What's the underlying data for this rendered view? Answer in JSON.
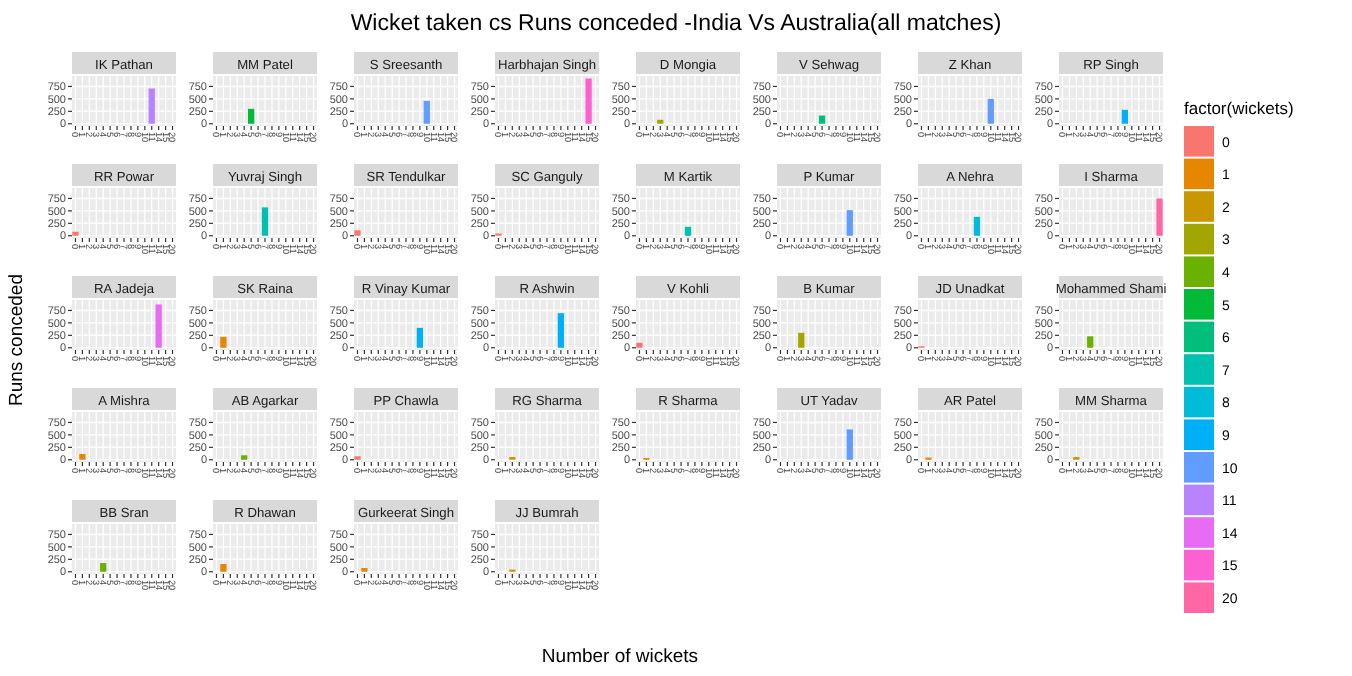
{
  "chart_data": [
    {
      "type": "other",
      "title": "Wicket taken cs Runs conceded -India Vs Australia(all matches)",
      "xlabel": "Number of wickets",
      "ylabel": "Runs conceded",
      "legend_title": "factor(wickets)"
    },
    {
      "type": "bar",
      "title": "IK Pathan",
      "categories": [
        "0",
        "1",
        "2",
        "3",
        "4",
        "5",
        "6",
        "7",
        "8",
        "9",
        "10",
        "11",
        "14",
        "15",
        "20"
      ],
      "series": [
        {
          "name": "11",
          "color": "#b983ff",
          "values": [
            null,
            null,
            null,
            null,
            null,
            null,
            null,
            null,
            null,
            null,
            null,
            710,
            null,
            null,
            null
          ]
        }
      ],
      "ylim": [
        -45,
        960
      ],
      "yticks": [
        0,
        250,
        500,
        750
      ],
      "grid": true,
      "legend": "right"
    },
    {
      "type": "bar",
      "title": "MM Patel",
      "categories": [
        "0",
        "1",
        "2",
        "3",
        "4",
        "5",
        "6",
        "7",
        "8",
        "9",
        "10",
        "11",
        "14",
        "15",
        "20"
      ],
      "series": [
        {
          "name": "5",
          "color": "#00ba38",
          "values": [
            null,
            null,
            null,
            null,
            null,
            300,
            null,
            null,
            null,
            null,
            null,
            null,
            null,
            null,
            null
          ]
        }
      ],
      "ylim": [
        -45,
        960
      ],
      "yticks": [
        0,
        250,
        500,
        750
      ],
      "grid": true
    },
    {
      "type": "bar",
      "title": "S Sreesanth",
      "categories": [
        "0",
        "1",
        "2",
        "3",
        "4",
        "5",
        "6",
        "7",
        "8",
        "9",
        "10",
        "11",
        "14",
        "15",
        "20"
      ],
      "series": [
        {
          "name": "10",
          "color": "#619cff",
          "values": [
            null,
            null,
            null,
            null,
            null,
            null,
            null,
            null,
            null,
            null,
            460,
            null,
            null,
            null,
            null
          ]
        }
      ],
      "ylim": [
        -45,
        960
      ],
      "yticks": [
        0,
        250,
        500,
        750
      ],
      "grid": true
    },
    {
      "type": "bar",
      "title": "Harbhajan Singh",
      "categories": [
        "0",
        "1",
        "2",
        "3",
        "4",
        "5",
        "6",
        "7",
        "8",
        "9",
        "10",
        "11",
        "14",
        "15",
        "20"
      ],
      "series": [
        {
          "name": "15",
          "color": "#fd61d1",
          "values": [
            null,
            null,
            null,
            null,
            null,
            null,
            null,
            null,
            null,
            null,
            null,
            null,
            null,
            910,
            null
          ]
        }
      ],
      "ylim": [
        -45,
        960
      ],
      "yticks": [
        0,
        250,
        500,
        750
      ],
      "grid": true
    },
    {
      "type": "bar",
      "title": "D Mongia",
      "categories": [
        "0",
        "1",
        "2",
        "3",
        "4",
        "5",
        "6",
        "7",
        "8",
        "9",
        "10",
        "11",
        "14",
        "15",
        "20"
      ],
      "series": [
        {
          "name": "3",
          "color": "#a3a500",
          "values": [
            null,
            null,
            null,
            80,
            null,
            null,
            null,
            null,
            null,
            null,
            null,
            null,
            null,
            null,
            null
          ]
        }
      ],
      "ylim": [
        -45,
        960
      ],
      "yticks": [
        0,
        250,
        500,
        750
      ],
      "grid": true
    },
    {
      "type": "bar",
      "title": "V Sehwag",
      "categories": [
        "0",
        "1",
        "2",
        "3",
        "4",
        "5",
        "6",
        "7",
        "8",
        "9",
        "10",
        "11",
        "14",
        "15",
        "20"
      ],
      "series": [
        {
          "name": "6",
          "color": "#00bf7d",
          "values": [
            null,
            null,
            null,
            null,
            null,
            null,
            165,
            null,
            null,
            null,
            null,
            null,
            null,
            null,
            null
          ]
        }
      ],
      "ylim": [
        -45,
        960
      ],
      "yticks": [
        0,
        250,
        500,
        750
      ],
      "grid": true
    },
    {
      "type": "bar",
      "title": "Z Khan",
      "categories": [
        "0",
        "1",
        "2",
        "3",
        "4",
        "5",
        "6",
        "7",
        "8",
        "9",
        "10",
        "11",
        "14",
        "15",
        "20"
      ],
      "series": [
        {
          "name": "10",
          "color": "#619cff",
          "values": [
            null,
            null,
            null,
            null,
            null,
            null,
            null,
            null,
            null,
            null,
            500,
            null,
            null,
            null,
            null
          ]
        }
      ],
      "ylim": [
        -45,
        960
      ],
      "yticks": [
        0,
        250,
        500,
        750
      ],
      "grid": true
    },
    {
      "type": "bar",
      "title": "RP Singh",
      "categories": [
        "0",
        "1",
        "2",
        "3",
        "4",
        "5",
        "6",
        "7",
        "8",
        "9",
        "10",
        "11",
        "14",
        "15",
        "20"
      ],
      "series": [
        {
          "name": "9",
          "color": "#00b0f6",
          "values": [
            null,
            null,
            null,
            null,
            null,
            null,
            null,
            null,
            null,
            280,
            null,
            null,
            null,
            null,
            null
          ]
        }
      ],
      "ylim": [
        -45,
        960
      ],
      "yticks": [
        0,
        250,
        500,
        750
      ],
      "grid": true
    },
    {
      "type": "bar",
      "title": "RR Powar",
      "categories": [
        "0",
        "1",
        "2",
        "3",
        "4",
        "5",
        "6",
        "7",
        "8",
        "9",
        "10",
        "11",
        "14",
        "15",
        "20"
      ],
      "series": [
        {
          "name": "0",
          "color": "#f8766d",
          "values": [
            80,
            null,
            null,
            null,
            null,
            null,
            null,
            null,
            null,
            null,
            null,
            null,
            null,
            null,
            null
          ]
        }
      ],
      "ylim": [
        -45,
        960
      ],
      "yticks": [
        0,
        250,
        500,
        750
      ],
      "grid": true
    },
    {
      "type": "bar",
      "title": "Yuvraj Singh",
      "categories": [
        "0",
        "1",
        "2",
        "3",
        "4",
        "5",
        "6",
        "7",
        "8",
        "9",
        "10",
        "11",
        "14",
        "15",
        "20"
      ],
      "series": [
        {
          "name": "7",
          "color": "#00c0af",
          "values": [
            null,
            null,
            null,
            null,
            null,
            null,
            null,
            570,
            null,
            null,
            null,
            null,
            null,
            null,
            null
          ]
        }
      ],
      "ylim": [
        -45,
        960
      ],
      "yticks": [
        0,
        250,
        500,
        750
      ],
      "grid": true
    },
    {
      "type": "bar",
      "title": "SR Tendulkar",
      "categories": [
        "0",
        "1",
        "2",
        "3",
        "4",
        "5",
        "6",
        "7",
        "8",
        "9",
        "10",
        "11",
        "14",
        "15",
        "20"
      ],
      "series": [
        {
          "name": "0",
          "color": "#f8766d",
          "values": [
            110,
            null,
            null,
            null,
            null,
            null,
            null,
            null,
            null,
            null,
            null,
            null,
            null,
            null,
            null
          ]
        }
      ],
      "ylim": [
        -45,
        960
      ],
      "yticks": [
        0,
        250,
        500,
        750
      ],
      "grid": true
    },
    {
      "type": "bar",
      "title": "SC Ganguly",
      "categories": [
        "0",
        "1",
        "2",
        "3",
        "4",
        "5",
        "6",
        "7",
        "8",
        "9",
        "10",
        "11",
        "14",
        "15",
        "20"
      ],
      "series": [
        {
          "name": "0",
          "color": "#f8766d",
          "values": [
            45,
            null,
            null,
            null,
            null,
            null,
            null,
            null,
            null,
            null,
            null,
            null,
            null,
            null,
            null
          ]
        }
      ],
      "ylim": [
        -45,
        960
      ],
      "yticks": [
        0,
        250,
        500,
        750
      ],
      "grid": true
    },
    {
      "type": "bar",
      "title": "M Kartik",
      "categories": [
        "0",
        "1",
        "2",
        "3",
        "4",
        "5",
        "6",
        "7",
        "8",
        "9",
        "10",
        "11",
        "14",
        "15",
        "20"
      ],
      "series": [
        {
          "name": "7",
          "color": "#00c0af",
          "values": [
            null,
            null,
            null,
            null,
            null,
            null,
            null,
            180,
            null,
            null,
            null,
            null,
            null,
            null,
            null
          ]
        }
      ],
      "ylim": [
        -45,
        960
      ],
      "yticks": [
        0,
        250,
        500,
        750
      ],
      "grid": true
    },
    {
      "type": "bar",
      "title": "P Kumar",
      "categories": [
        "0",
        "1",
        "2",
        "3",
        "4",
        "5",
        "6",
        "7",
        "8",
        "9",
        "10",
        "11",
        "14",
        "15",
        "20"
      ],
      "series": [
        {
          "name": "10",
          "color": "#619cff",
          "values": [
            null,
            null,
            null,
            null,
            null,
            null,
            null,
            null,
            null,
            null,
            515,
            null,
            null,
            null,
            null
          ]
        }
      ],
      "ylim": [
        -45,
        960
      ],
      "yticks": [
        0,
        250,
        500,
        750
      ],
      "grid": true
    },
    {
      "type": "bar",
      "title": "A Nehra",
      "categories": [
        "0",
        "1",
        "2",
        "3",
        "4",
        "5",
        "6",
        "7",
        "8",
        "9",
        "10",
        "11",
        "14",
        "15",
        "20"
      ],
      "series": [
        {
          "name": "8",
          "color": "#00bcd8",
          "values": [
            null,
            null,
            null,
            null,
            null,
            null,
            null,
            null,
            380,
            null,
            null,
            null,
            null,
            null,
            null
          ]
        }
      ],
      "ylim": [
        -45,
        960
      ],
      "yticks": [
        0,
        250,
        500,
        750
      ],
      "grid": true
    },
    {
      "type": "bar",
      "title": "I Sharma",
      "categories": [
        "0",
        "1",
        "2",
        "3",
        "4",
        "5",
        "6",
        "7",
        "8",
        "9",
        "10",
        "11",
        "14",
        "15",
        "20"
      ],
      "series": [
        {
          "name": "20",
          "color": "#ff67a4",
          "values": [
            null,
            null,
            null,
            null,
            null,
            null,
            null,
            null,
            null,
            null,
            null,
            null,
            null,
            null,
            750
          ]
        }
      ],
      "ylim": [
        -45,
        960
      ],
      "yticks": [
        0,
        250,
        500,
        750
      ],
      "grid": true
    },
    {
      "type": "bar",
      "title": "RA Jadeja",
      "categories": [
        "0",
        "1",
        "2",
        "3",
        "4",
        "5",
        "6",
        "7",
        "8",
        "9",
        "10",
        "11",
        "14",
        "15",
        "20"
      ],
      "series": [
        {
          "name": "14",
          "color": "#e76bf3",
          "values": [
            null,
            null,
            null,
            null,
            null,
            null,
            null,
            null,
            null,
            null,
            null,
            null,
            870,
            null,
            null
          ]
        }
      ],
      "ylim": [
        -45,
        960
      ],
      "yticks": [
        0,
        250,
        500,
        750
      ],
      "grid": true
    },
    {
      "type": "bar",
      "title": "SK Raina",
      "categories": [
        "0",
        "1",
        "2",
        "3",
        "4",
        "5",
        "6",
        "7",
        "8",
        "9",
        "10",
        "11",
        "14",
        "15",
        "20"
      ],
      "series": [
        {
          "name": "1",
          "color": "#e58700",
          "values": [
            null,
            220,
            null,
            null,
            null,
            null,
            null,
            null,
            null,
            null,
            null,
            null,
            null,
            null,
            null
          ]
        }
      ],
      "ylim": [
        -45,
        960
      ],
      "yticks": [
        0,
        250,
        500,
        750
      ],
      "grid": true
    },
    {
      "type": "bar",
      "title": "R Vinay Kumar",
      "categories": [
        "0",
        "1",
        "2",
        "3",
        "4",
        "5",
        "6",
        "7",
        "8",
        "9",
        "10",
        "11",
        "14",
        "15",
        "20"
      ],
      "series": [
        {
          "name": "9",
          "color": "#00b0f6",
          "values": [
            null,
            null,
            null,
            null,
            null,
            null,
            null,
            null,
            null,
            400,
            null,
            null,
            null,
            null,
            null
          ]
        }
      ],
      "ylim": [
        -45,
        960
      ],
      "yticks": [
        0,
        250,
        500,
        750
      ],
      "grid": true
    },
    {
      "type": "bar",
      "title": "R Ashwin",
      "categories": [
        "0",
        "1",
        "2",
        "3",
        "4",
        "5",
        "6",
        "7",
        "8",
        "9",
        "10",
        "11",
        "14",
        "15",
        "20"
      ],
      "series": [
        {
          "name": "9",
          "color": "#00b0f6",
          "values": [
            null,
            null,
            null,
            null,
            null,
            null,
            null,
            null,
            null,
            695,
            null,
            null,
            null,
            null,
            null
          ]
        }
      ],
      "ylim": [
        -45,
        960
      ],
      "yticks": [
        0,
        250,
        500,
        750
      ],
      "grid": true
    },
    {
      "type": "bar",
      "title": "V Kohli",
      "categories": [
        "0",
        "1",
        "2",
        "3",
        "4",
        "5",
        "6",
        "7",
        "8",
        "9",
        "10",
        "11",
        "14",
        "15",
        "20"
      ],
      "series": [
        {
          "name": "0",
          "color": "#f8766d",
          "values": [
            100,
            null,
            null,
            null,
            null,
            null,
            null,
            null,
            null,
            null,
            null,
            null,
            null,
            null,
            null
          ]
        }
      ],
      "ylim": [
        -45,
        960
      ],
      "yticks": [
        0,
        250,
        500,
        750
      ],
      "grid": true
    },
    {
      "type": "bar",
      "title": "B Kumar",
      "categories": [
        "0",
        "1",
        "2",
        "3",
        "4",
        "5",
        "6",
        "7",
        "8",
        "9",
        "10",
        "11",
        "14",
        "15",
        "20"
      ],
      "series": [
        {
          "name": "3",
          "color": "#a3a500",
          "values": [
            null,
            null,
            null,
            300,
            null,
            null,
            null,
            null,
            null,
            null,
            null,
            null,
            null,
            null,
            null
          ]
        }
      ],
      "ylim": [
        -45,
        960
      ],
      "yticks": [
        0,
        250,
        500,
        750
      ],
      "grid": true
    },
    {
      "type": "bar",
      "title": "JD Unadkat",
      "categories": [
        "0",
        "1",
        "2",
        "3",
        "4",
        "5",
        "6",
        "7",
        "8",
        "9",
        "10",
        "11",
        "14",
        "15",
        "20"
      ],
      "series": [
        {
          "name": "0",
          "color": "#f8766d",
          "values": [
            30,
            null,
            null,
            null,
            null,
            null,
            null,
            null,
            null,
            null,
            null,
            null,
            null,
            null,
            null
          ]
        }
      ],
      "ylim": [
        -45,
        960
      ],
      "yticks": [
        0,
        250,
        500,
        750
      ],
      "grid": true
    },
    {
      "type": "bar",
      "title": "Mohammed Shami",
      "categories": [
        "0",
        "1",
        "2",
        "3",
        "4",
        "5",
        "6",
        "7",
        "8",
        "9",
        "10",
        "11",
        "14",
        "15",
        "20"
      ],
      "series": [
        {
          "name": "4",
          "color": "#6bb100",
          "values": [
            null,
            null,
            null,
            null,
            230,
            null,
            null,
            null,
            null,
            null,
            null,
            null,
            null,
            null,
            null
          ]
        }
      ],
      "ylim": [
        -45,
        960
      ],
      "yticks": [
        0,
        250,
        500,
        750
      ],
      "grid": true
    },
    {
      "type": "bar",
      "title": "A Mishra",
      "categories": [
        "0",
        "1",
        "2",
        "3",
        "4",
        "5",
        "6",
        "7",
        "8",
        "9",
        "10",
        "11",
        "14",
        "15",
        "20"
      ],
      "series": [
        {
          "name": "1",
          "color": "#e58700",
          "values": [
            null,
            115,
            null,
            null,
            null,
            null,
            null,
            null,
            null,
            null,
            null,
            null,
            null,
            null,
            null
          ]
        }
      ],
      "ylim": [
        -45,
        960
      ],
      "yticks": [
        0,
        250,
        500,
        750
      ],
      "grid": true
    },
    {
      "type": "bar",
      "title": "AB Agarkar",
      "categories": [
        "0",
        "1",
        "2",
        "3",
        "4",
        "5",
        "6",
        "7",
        "8",
        "9",
        "10",
        "11",
        "14",
        "15",
        "20"
      ],
      "series": [
        {
          "name": "4",
          "color": "#6bb100",
          "values": [
            null,
            null,
            null,
            null,
            90,
            null,
            null,
            null,
            null,
            null,
            null,
            null,
            null,
            null,
            null
          ]
        }
      ],
      "ylim": [
        -45,
        960
      ],
      "yticks": [
        0,
        250,
        500,
        750
      ],
      "grid": true
    },
    {
      "type": "bar",
      "title": "PP Chawla",
      "categories": [
        "0",
        "1",
        "2",
        "3",
        "4",
        "5",
        "6",
        "7",
        "8",
        "9",
        "10",
        "11",
        "14",
        "15",
        "20"
      ],
      "series": [
        {
          "name": "0",
          "color": "#f8766d",
          "values": [
            70,
            null,
            null,
            null,
            null,
            null,
            null,
            null,
            null,
            null,
            null,
            null,
            null,
            null,
            null
          ]
        }
      ],
      "ylim": [
        -45,
        960
      ],
      "yticks": [
        0,
        250,
        500,
        750
      ],
      "grid": true
    },
    {
      "type": "bar",
      "title": "RG Sharma",
      "categories": [
        "0",
        "1",
        "2",
        "3",
        "4",
        "5",
        "6",
        "7",
        "8",
        "9",
        "10",
        "11",
        "14",
        "15",
        "20"
      ],
      "series": [
        {
          "name": "2",
          "color": "#c99800",
          "values": [
            null,
            null,
            55,
            null,
            null,
            null,
            null,
            null,
            null,
            null,
            null,
            null,
            null,
            null,
            null
          ]
        }
      ],
      "ylim": [
        -45,
        960
      ],
      "yticks": [
        0,
        250,
        500,
        750
      ],
      "grid": true
    },
    {
      "type": "bar",
      "title": "R Sharma",
      "categories": [
        "0",
        "1",
        "2",
        "3",
        "4",
        "5",
        "6",
        "7",
        "8",
        "9",
        "10",
        "11",
        "14",
        "15",
        "20"
      ],
      "series": [
        {
          "name": "1",
          "color": "#e58700",
          "values": [
            null,
            35,
            null,
            null,
            null,
            null,
            null,
            null,
            null,
            null,
            null,
            null,
            null,
            null,
            null
          ]
        }
      ],
      "ylim": [
        -45,
        960
      ],
      "yticks": [
        0,
        250,
        500,
        750
      ],
      "grid": true
    },
    {
      "type": "bar",
      "title": "UT Yadav",
      "categories": [
        "0",
        "1",
        "2",
        "3",
        "4",
        "5",
        "6",
        "7",
        "8",
        "9",
        "10",
        "11",
        "14",
        "15",
        "20"
      ],
      "series": [
        {
          "name": "10",
          "color": "#619cff",
          "values": [
            null,
            null,
            null,
            null,
            null,
            null,
            null,
            null,
            null,
            null,
            610,
            null,
            null,
            null,
            null
          ]
        }
      ],
      "ylim": [
        -45,
        960
      ],
      "yticks": [
        0,
        250,
        500,
        750
      ],
      "grid": true
    },
    {
      "type": "bar",
      "title": "AR Patel",
      "categories": [
        "0",
        "1",
        "2",
        "3",
        "4",
        "5",
        "6",
        "7",
        "8",
        "9",
        "10",
        "11",
        "14",
        "15",
        "20"
      ],
      "series": [
        {
          "name": "1",
          "color": "#e58700",
          "values": [
            null,
            45,
            null,
            null,
            null,
            null,
            null,
            null,
            null,
            null,
            null,
            null,
            null,
            null,
            null
          ]
        }
      ],
      "ylim": [
        -45,
        960
      ],
      "yticks": [
        0,
        250,
        500,
        750
      ],
      "grid": true
    },
    {
      "type": "bar",
      "title": "MM Sharma",
      "categories": [
        "0",
        "1",
        "2",
        "3",
        "4",
        "5",
        "6",
        "7",
        "8",
        "9",
        "10",
        "11",
        "14",
        "15",
        "20"
      ],
      "series": [
        {
          "name": "2",
          "color": "#c99800",
          "values": [
            null,
            null,
            55,
            null,
            null,
            null,
            null,
            null,
            null,
            null,
            null,
            null,
            null,
            null,
            null
          ]
        }
      ],
      "ylim": [
        -45,
        960
      ],
      "yticks": [
        0,
        250,
        500,
        750
      ],
      "grid": true
    },
    {
      "type": "bar",
      "title": "BB Sran",
      "categories": [
        "0",
        "1",
        "2",
        "3",
        "4",
        "5",
        "6",
        "7",
        "8",
        "9",
        "10",
        "11",
        "14",
        "15",
        "20"
      ],
      "series": [
        {
          "name": "4",
          "color": "#6bb100",
          "values": [
            null,
            null,
            null,
            null,
            175,
            null,
            null,
            null,
            null,
            null,
            null,
            null,
            null,
            null,
            null
          ]
        }
      ],
      "ylim": [
        -45,
        960
      ],
      "yticks": [
        0,
        250,
        500,
        750
      ],
      "grid": true
    },
    {
      "type": "bar",
      "title": "R Dhawan",
      "categories": [
        "0",
        "1",
        "2",
        "3",
        "4",
        "5",
        "6",
        "7",
        "8",
        "9",
        "10",
        "11",
        "14",
        "15",
        "20"
      ],
      "series": [
        {
          "name": "1",
          "color": "#e58700",
          "values": [
            null,
            155,
            null,
            null,
            null,
            null,
            null,
            null,
            null,
            null,
            null,
            null,
            null,
            null,
            null
          ]
        }
      ],
      "ylim": [
        -45,
        960
      ],
      "yticks": [
        0,
        250,
        500,
        750
      ],
      "grid": true
    },
    {
      "type": "bar",
      "title": "Gurkeerat Singh",
      "categories": [
        "0",
        "1",
        "2",
        "3",
        "4",
        "5",
        "6",
        "7",
        "8",
        "9",
        "10",
        "11",
        "14",
        "15",
        "20"
      ],
      "series": [
        {
          "name": "1",
          "color": "#e58700",
          "values": [
            null,
            75,
            null,
            null,
            null,
            null,
            null,
            null,
            null,
            null,
            null,
            null,
            null,
            null,
            null
          ]
        }
      ],
      "ylim": [
        -45,
        960
      ],
      "yticks": [
        0,
        250,
        500,
        750
      ],
      "grid": true
    },
    {
      "type": "bar",
      "title": "JJ Bumrah",
      "categories": [
        "0",
        "1",
        "2",
        "3",
        "4",
        "5",
        "6",
        "7",
        "8",
        "9",
        "10",
        "11",
        "14",
        "15",
        "20"
      ],
      "series": [
        {
          "name": "2",
          "color": "#c99800",
          "values": [
            null,
            null,
            45,
            null,
            null,
            null,
            null,
            null,
            null,
            null,
            null,
            null,
            null,
            null,
            null
          ]
        }
      ],
      "ylim": [
        -45,
        960
      ],
      "yticks": [
        0,
        250,
        500,
        750
      ],
      "grid": true
    }
  ]
}
